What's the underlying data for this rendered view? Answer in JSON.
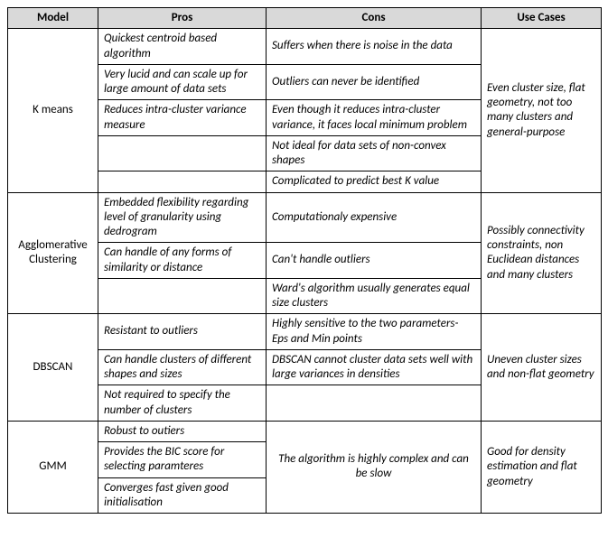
{
  "headers": {
    "c0": "Model",
    "c1": "Pros",
    "c2": "Cons",
    "c3": "Use Cases"
  },
  "models": {
    "kmeans": {
      "name": "K means",
      "pros": [
        "Quickest centroid based algorithm",
        "Very lucid and can scale up for large amount of data sets",
        " Reduces intra-cluster variance measure",
        "",
        ""
      ],
      "cons": [
        " Suffers when there is noise in the data",
        " Outliers can never be identified",
        "Even though it reduces intra-cluster variance, it faces local minimum problem",
        "Not ideal for data sets of non-convex shapes",
        "Complicated to predict best K value"
      ],
      "use": "Even cluster size, flat geometry, not too many clusters and general-purpose"
    },
    "agg": {
      "name": "Agglomerative Clustering",
      "pros": [
        "Embedded flexibility regarding level of granularity using dedrogram",
        "Can handle of any forms of similarity or distance",
        ""
      ],
      "cons": [
        "Computationaly expensive",
        "Can't handle  outliers",
        "Ward's algorithm usually  generates equal size clusters"
      ],
      "use": "Possibly connectivity constraints, non Euclidean distances and many clusters"
    },
    "dbscan": {
      "name": "DBSCAN",
      "pros": [
        "Resistant to outliers",
        " Can handle clusters of different shapes and sizes",
        "Not required to specify the number of clusters"
      ],
      "cons": [
        "Highly sensitive to the two parameters- Eps and Min points",
        "DBSCAN cannot cluster data sets well with large variances in densities",
        ""
      ],
      "use": "Uneven cluster sizes and non-flat geometry"
    },
    "gmm": {
      "name": "GMM",
      "pros": [
        "Robust to outiers",
        "Provides the BIC score for selecting paramteres",
        "Converges fast given good initialisation"
      ],
      "cons_merged": " The algorithm is highly complex and can be slow",
      "use": "Good for density estimation and flat geometry"
    }
  },
  "colors": {
    "header_bg": "#d9d9d9",
    "border": "#000000",
    "bg": "#ffffff"
  }
}
